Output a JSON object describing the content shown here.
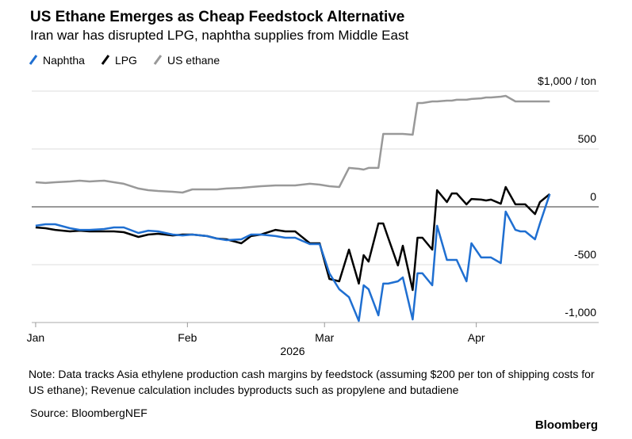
{
  "chart_data": {
    "type": "line",
    "title": "US Ethane Emerges as Cheap Feedstock Alternative",
    "subtitle": "Iran war has disrupted LPG, naphtha supplies from Middle East",
    "x_label": "2026",
    "note": "Note: Data tracks Asia ethylene production cash margins by feedstock (assuming $200 per ton of shipping costs for US ethane); Revenue calculation includes byproducts such as propylene and butadiene",
    "source": "Source: BloombergNEF",
    "brand": "Bloomberg",
    "x": [
      0,
      2,
      4,
      7,
      9,
      11,
      14,
      16,
      18,
      21,
      23,
      25,
      28,
      30,
      32,
      35,
      37,
      39,
      42,
      44,
      46,
      49,
      51,
      53,
      56,
      58,
      60,
      62,
      64,
      66,
      67,
      68,
      70,
      71,
      72,
      74,
      75,
      77,
      78,
      79,
      81,
      82,
      84,
      85,
      86,
      88,
      89,
      91,
      92,
      93,
      95,
      96,
      98,
      99,
      100,
      102,
      103,
      105
    ],
    "xlim": [
      -0.8,
      115
    ],
    "xticks": [
      {
        "value": 0,
        "label": "Jan"
      },
      {
        "value": 31,
        "label": "Feb"
      },
      {
        "value": 59,
        "label": "Mar"
      },
      {
        "value": 90,
        "label": "Apr"
      }
    ],
    "ylim": [
      -1000,
      1000
    ],
    "yticks": [
      {
        "value": -1000,
        "label": "-1,000"
      },
      -500,
      0,
      500,
      {
        "value": 1000,
        "label": "$1,000 / ton"
      }
    ],
    "grid": true,
    "series": [
      {
        "name": "Naphtha",
        "color": "#1f6fd1",
        "values": [
          -164,
          -151,
          -151,
          -185,
          -199,
          -199,
          -192,
          -178,
          -178,
          -226,
          -206,
          -212,
          -240,
          -247,
          -240,
          -253,
          -274,
          -288,
          -281,
          -240,
          -240,
          -253,
          -267,
          -267,
          -322,
          -322,
          -575,
          -712,
          -781,
          -986,
          -678,
          -712,
          -938,
          -664,
          -664,
          -644,
          -610,
          -973,
          -575,
          -575,
          -678,
          -164,
          -459,
          -459,
          -459,
          -644,
          -315,
          -438,
          -438,
          -438,
          -486,
          -41,
          -199,
          -212,
          -212,
          -281,
          -144,
          110
        ]
      },
      {
        "name": "LPG",
        "color": "#000000",
        "values": [
          -178,
          -185,
          -199,
          -212,
          -206,
          -212,
          -212,
          -212,
          -219,
          -260,
          -240,
          -233,
          -247,
          -240,
          -240,
          -253,
          -274,
          -281,
          -315,
          -253,
          -240,
          -199,
          -212,
          -212,
          -315,
          -315,
          -623,
          -644,
          -370,
          -664,
          -418,
          -473,
          -144,
          -144,
          -267,
          -507,
          -336,
          -719,
          -267,
          -267,
          -370,
          144,
          41,
          116,
          116,
          21,
          68,
          62,
          55,
          62,
          27,
          171,
          21,
          21,
          21,
          -62,
          41,
          110
        ]
      },
      {
        "name": "US ethane",
        "color": "#999999",
        "values": [
          212,
          206,
          212,
          219,
          226,
          219,
          226,
          212,
          199,
          158,
          144,
          137,
          130,
          123,
          151,
          151,
          151,
          158,
          164,
          171,
          178,
          185,
          185,
          185,
          199,
          192,
          178,
          171,
          336,
          329,
          322,
          336,
          336,
          630,
          630,
          630,
          630,
          623,
          897,
          897,
          911,
          911,
          918,
          918,
          925,
          925,
          932,
          938,
          945,
          945,
          952,
          959,
          911,
          911,
          911,
          911,
          911,
          911
        ]
      }
    ]
  }
}
